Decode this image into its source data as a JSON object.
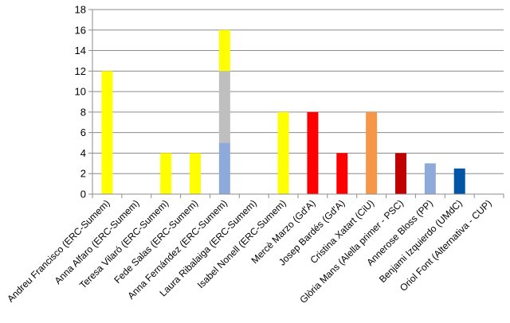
{
  "chart_data": {
    "type": "bar",
    "stacked": true,
    "ylim": [
      0,
      18
    ],
    "yticks": [
      0,
      2,
      4,
      6,
      8,
      10,
      12,
      14,
      16,
      18
    ],
    "grid": true,
    "legend": "none",
    "categories": [
      "Andreu Francisco (ERC-Sumem)",
      "Anna Alfaro (ERC-Sumem)",
      "Teresa Vilaró (ERC-Sumem)",
      "Fede Salas (ERC-Sumem)",
      "Anna Fernández (ERC-Sumem)",
      "Laura Ribalaiga (ERC-Sumem)",
      "Isabel Nonell (ERC-Sumem)",
      "Mercè Marzo (Gd'A)",
      "Josep Bardés (Gd'A)",
      "Cristina Xatart (CiU)",
      "Glòria Mans (Alella primer - PSC)",
      "Annerose Bloss (PP)",
      "Benjami Izquierdo (UMdC)",
      "Oriol Font (Alternativa - CUP)"
    ],
    "bars": [
      [
        {
          "value": 12,
          "color": "#ffff00"
        }
      ],
      [],
      [
        {
          "value": 4,
          "color": "#ffff00"
        }
      ],
      [
        {
          "value": 4,
          "color": "#ffff00"
        }
      ],
      [
        {
          "value": 5,
          "color": "#8eaadb"
        },
        {
          "value": 7,
          "color": "#bfbfbf"
        },
        {
          "value": 4,
          "color": "#ffff00"
        }
      ],
      [],
      [
        {
          "value": 8,
          "color": "#ffff00"
        }
      ],
      [
        {
          "value": 8,
          "color": "#ff0000"
        }
      ],
      [
        {
          "value": 4,
          "color": "#ff0000"
        }
      ],
      [
        {
          "value": 8,
          "color": "#f79646"
        }
      ],
      [
        {
          "value": 4,
          "color": "#c00000"
        }
      ],
      [
        {
          "value": 3,
          "color": "#8eaadb"
        }
      ],
      [
        {
          "value": 2.5,
          "color": "#0055a5"
        }
      ],
      []
    ]
  }
}
